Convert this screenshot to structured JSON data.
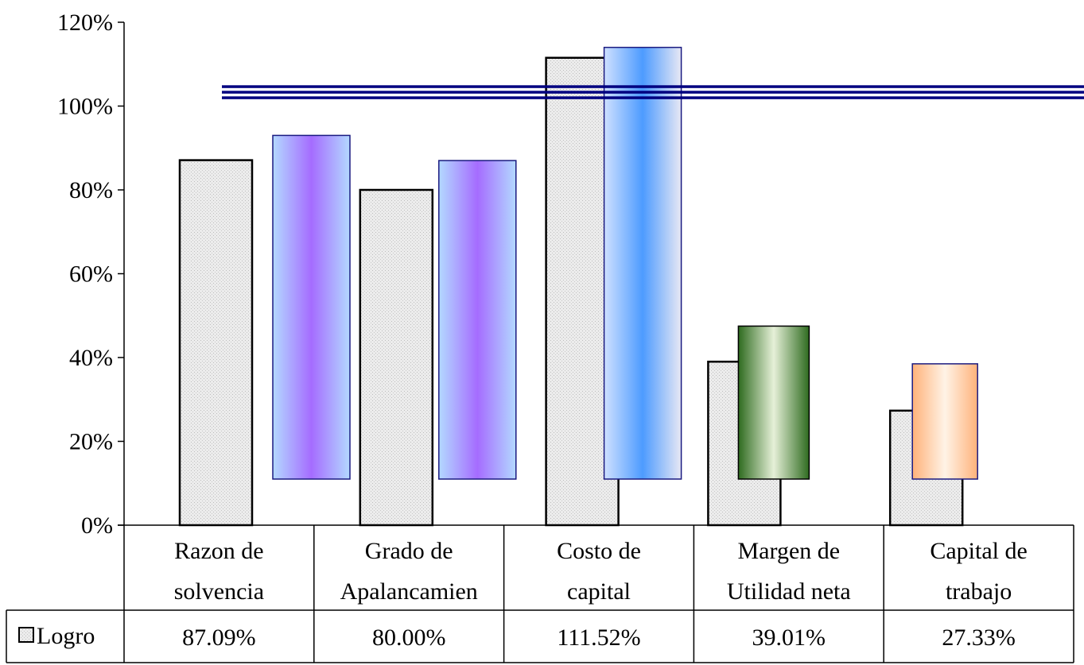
{
  "chart_data": {
    "type": "bar",
    "categories": [
      [
        "Razon de",
        "solvencia"
      ],
      [
        "Grado de",
        "Apalancamien"
      ],
      [
        "Costo de",
        "capital"
      ],
      [
        "Margen de",
        "Utilidad neta"
      ],
      [
        "Capital de",
        "trabajo"
      ]
    ],
    "series": [
      {
        "name": "Logro",
        "values": [
          87.09,
          80.0,
          111.52,
          39.01,
          27.33
        ],
        "color": "#e6e6e6",
        "table_labels": [
          "87.09%",
          "80.00%",
          "111.52%",
          "39.01%",
          "27.33%"
        ]
      }
    ],
    "floating_bars": [
      {
        "low": 11,
        "high": 93,
        "colors": [
          "#b3d9ff",
          "#a56cff",
          "#b3d9ff"
        ]
      },
      {
        "low": 11,
        "high": 87,
        "colors": [
          "#b3d9ff",
          "#a56cff",
          "#b3d9ff"
        ]
      },
      {
        "low": 11,
        "high": 114,
        "colors": [
          "#cfe0ff",
          "#4d9bff",
          "#e8e8f4"
        ]
      },
      {
        "low": 11,
        "high": 47.5,
        "colors": [
          "#2e6b1f",
          "#e6f0d8",
          "#2e6b1f"
        ]
      },
      {
        "low": 11,
        "high": 38.5,
        "colors": [
          "#ffb27a",
          "#fff3e6",
          "#ffb27a"
        ]
      }
    ],
    "reference_line": {
      "value": 102.5,
      "color": "#000080"
    },
    "ylim": [
      0,
      120
    ],
    "yticks": [
      0,
      20,
      40,
      60,
      80,
      100,
      120
    ],
    "tick_suffix": "%",
    "grid": false,
    "legend": "data-table"
  }
}
